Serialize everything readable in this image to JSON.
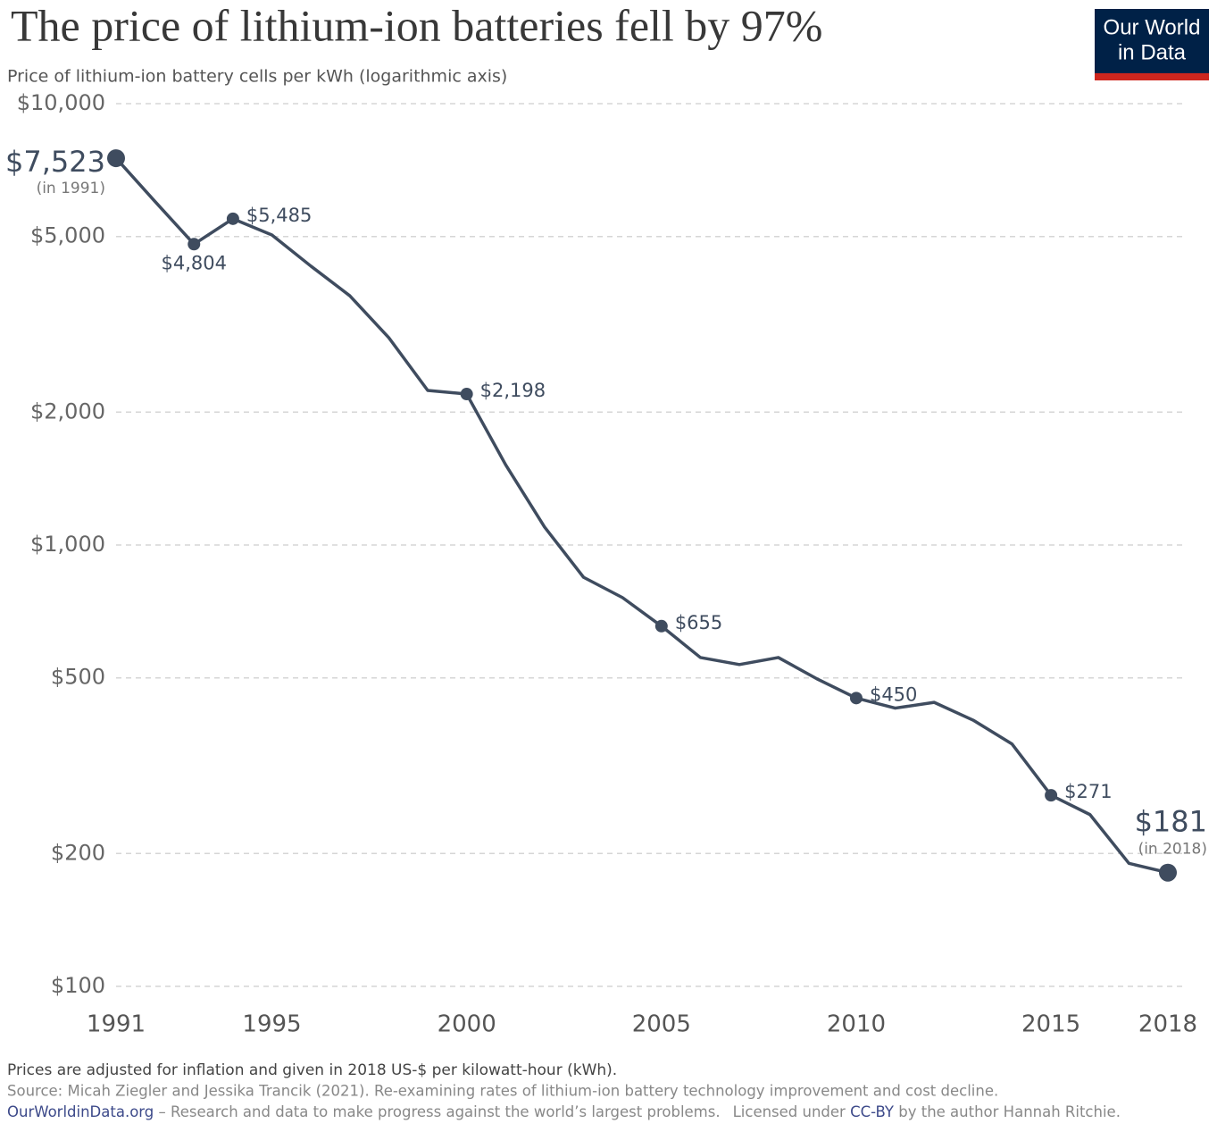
{
  "chart_data": {
    "type": "line",
    "title": "The price of lithium-ion batteries fell by 97%",
    "subtitle": "Price of lithium-ion battery cells per kWh (logarithmic axis)",
    "x": [
      1991,
      1992,
      1993,
      1994,
      1995,
      1996,
      1997,
      1998,
      1999,
      2000,
      2001,
      2002,
      2003,
      2004,
      2005,
      2006,
      2007,
      2008,
      2009,
      2010,
      2011,
      2012,
      2013,
      2014,
      2015,
      2016,
      2017,
      2018
    ],
    "values": [
      7523,
      6000,
      4804,
      5485,
      5040,
      4285,
      3670,
      2950,
      2240,
      2198,
      1520,
      1098,
      845,
      760,
      655,
      556,
      536,
      556,
      497,
      450,
      427,
      440,
      401,
      354,
      271,
      245,
      190,
      181
    ],
    "value_labels": [
      "$7,523",
      null,
      "$4,804",
      "$5,485",
      null,
      null,
      null,
      null,
      null,
      "$2,198",
      null,
      null,
      null,
      null,
      "$655",
      null,
      null,
      null,
      null,
      "$450",
      null,
      null,
      null,
      null,
      "$271",
      null,
      null,
      "$181"
    ],
    "annotations": [
      "(in 1991)",
      "(in 2018)"
    ],
    "color": "#3f4c5f",
    "log_scale": true,
    "grid": true,
    "xlim": [
      1991,
      2018
    ],
    "xticks": [
      1991,
      1995,
      2000,
      2005,
      2010,
      2015,
      2018
    ],
    "ylim": [
      100,
      10000
    ],
    "yticks": [
      {
        "value": 100,
        "label": "$100"
      },
      {
        "value": 200,
        "label": "$200"
      },
      {
        "value": 500,
        "label": "$500"
      },
      {
        "value": 1000,
        "label": "$1,000"
      },
      {
        "value": 2000,
        "label": "$2,000"
      },
      {
        "value": 5000,
        "label": "$5,000"
      },
      {
        "value": 10000,
        "label": "$10,000"
      }
    ]
  },
  "logo": [
    "Our World",
    "in Data"
  ],
  "footer": {
    "note": "Prices are adjusted for inflation and given in 2018 US-$ per kilowatt-hour (kWh).",
    "source": "Source: Micah Ziegler and Jessika Trancik (2021). Re-examining rates of lithium-ion battery technology improvement and cost decline.",
    "site": "OurWorldinData.org",
    "tagline": " – Research and data to make progress against the world’s largest problems.",
    "license_pre": "Licensed under ",
    "license_link": "CC-BY",
    "license_post": " by the author Hannah Ritchie."
  }
}
